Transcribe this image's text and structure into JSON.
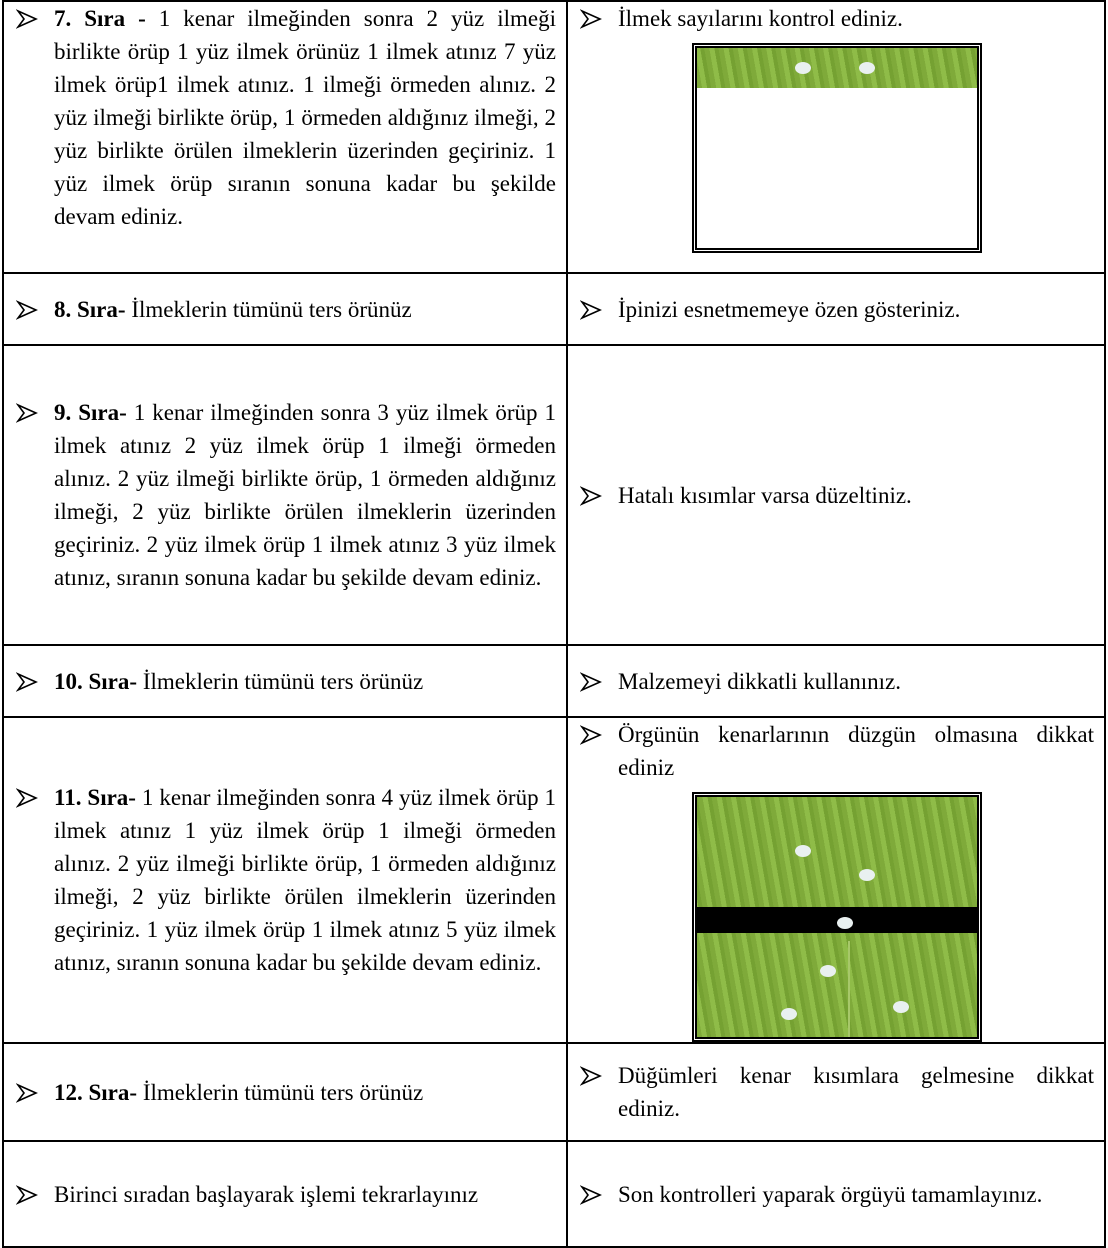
{
  "table": {
    "rows": [
      {
        "left": {
          "label": "7. Sıra -",
          "text": "1 kenar ilmeğinden sonra 2 yüz ilmeği birlikte örüp 1 yüz ilmek örünüz 1 ilmek atınız 7 yüz ilmek örüp1 ilmek atınız. 1 ilmeği örmeden alınız. 2 yüz ilmeği birlikte örüp, 1 örmeden aldığınız ilmeği, 2 yüz birlikte örülen ilmeklerin üzerinden geçiriniz. 1 yüz ilmek örüp sıranın sonuna kadar bu şekilde devam ediniz."
        },
        "right": "İlmek sayılarını kontrol ediniz."
      },
      {
        "left": {
          "label": "8. Sıra-",
          "text": "İlmeklerin tümünü ters örünüz"
        },
        "right": "İpinizi esnetmemeye özen gösteriniz."
      },
      {
        "left": {
          "label": "9. Sıra-",
          "text": "1 kenar ilmeğinden sonra 3 yüz ilmek örüp 1 ilmek atınız 2 yüz ilmek örüp 1 ilmeği örmeden alınız. 2 yüz ilmeği birlikte örüp, 1 örmeden aldığınız ilmeği, 2 yüz birlikte örülen ilmeklerin üzerinden geçiriniz. 2 yüz ilmek örüp 1 ilmek atınız 3 yüz ilmek atınız, sıranın sonuna kadar bu şekilde devam ediniz."
        },
        "right": "Hatalı kısımlar varsa düzeltiniz."
      },
      {
        "left": {
          "label": "10. Sıra-",
          "text": "İlmeklerin tümünü ters örünüz"
        },
        "right": "Malzemeyi dikkatli kullanınız."
      },
      {
        "left": {
          "label": "11. Sıra-",
          "text": "1 kenar ilmeğinden sonra 4 yüz ilmek örüp 1 ilmek atınız 1 yüz ilmek örüp 1 ilmeği örmeden alınız. 2 yüz ilmeği birlikte örüp, 1 örmeden aldığınız ilmeği, 2 yüz birlikte örülen ilmeklerin üzerinden geçiriniz. 1 yüz ilmek örüp 1 ilmek atınız 5 yüz ilmek atınız, sıranın sonuna kadar bu şekilde devam ediniz."
        },
        "right": "Örgünün kenarlarının düzgün olmasına dikkat ediniz"
      },
      {
        "left": {
          "label": "12. Sıra-",
          "text": "İlmeklerin tümünü ters örünüz"
        },
        "right": "Düğümleri kenar kısımlara gelmesine dikkat ediniz."
      },
      {
        "left": {
          "text": "Birinci sıradan başlayarak işlemi tekrarlayınız"
        },
        "right": "Son kontrolleri yaparak örgüyü tamamlayınız."
      }
    ]
  }
}
